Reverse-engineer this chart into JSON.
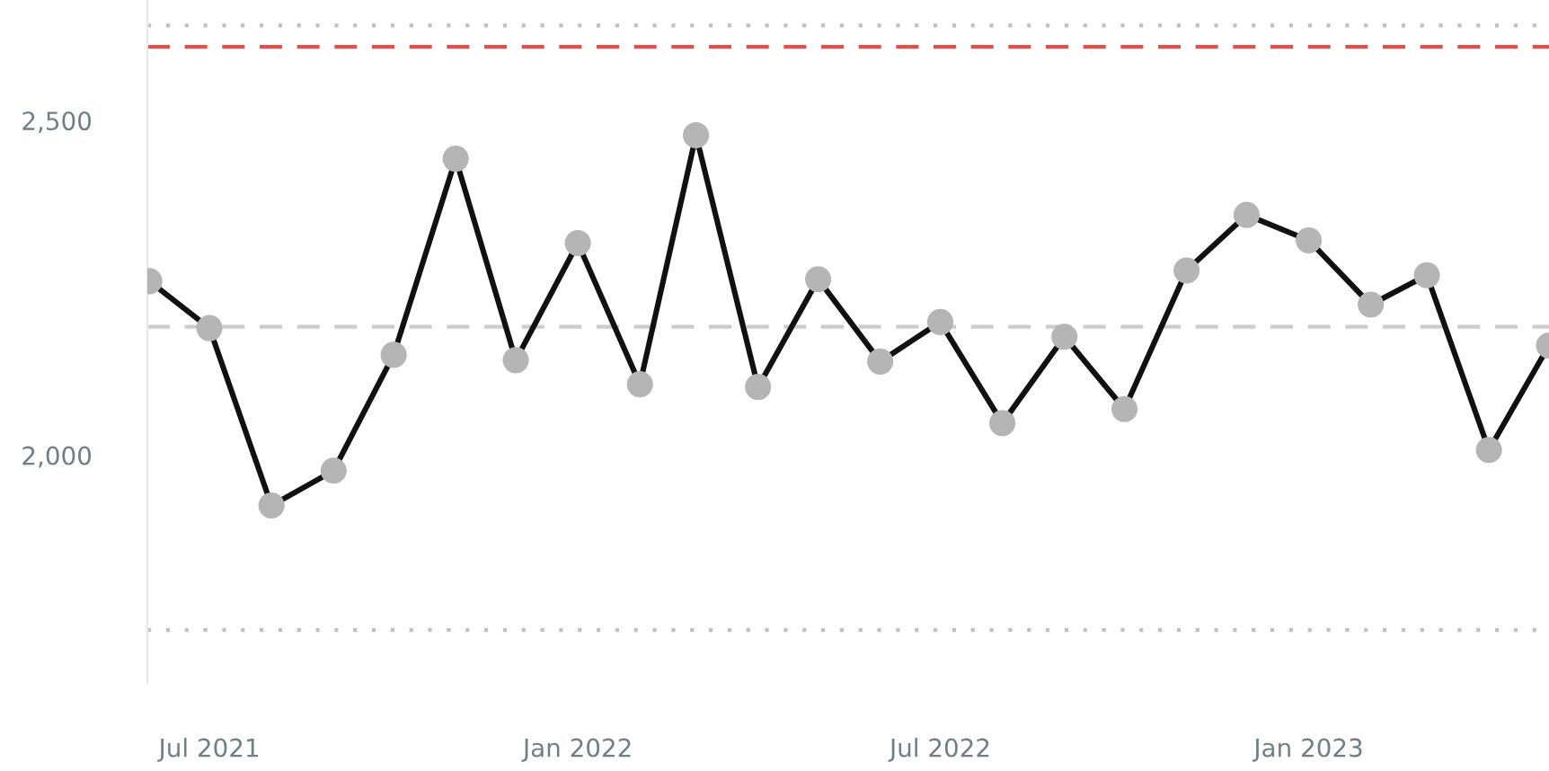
{
  "chart_data": {
    "type": "line",
    "x": [
      "2021-06",
      "2021-07",
      "2021-08",
      "2021-09",
      "2021-10",
      "2021-11",
      "2021-12",
      "2022-01",
      "2022-02",
      "2022-03",
      "2022-04",
      "2022-05",
      "2022-06",
      "2022-07",
      "2022-08",
      "2022-09",
      "2022-10",
      "2022-11",
      "2022-12",
      "2023-01",
      "2023-02",
      "2023-03",
      "2023-04",
      "2023-05"
    ],
    "series": [
      {
        "color": "#111111",
        "colors": [
          "#b5b5b5",
          "#b5b5b5",
          "#b5b5b5",
          "#b5b5b5",
          "#b5b5b5",
          "#b5b5b5",
          "#b5b5b5",
          "#b5b5b5",
          "#b5b5b5",
          "#b5b5b5",
          "#b5b5b5",
          "#b5b5b5",
          "#b5b5b5",
          "#b5b5b5",
          "#b5b5b5",
          "#b5b5b5",
          "#b5b5b5",
          "#b5b5b5",
          "#b5b5b5",
          "#b5b5b5",
          "#b5b5b5",
          "#b5b5b5",
          "#b5b5b5",
          "#b5b5b5"
        ],
        "values": [
          2260,
          2190,
          1925,
          1977,
          2150,
          2443,
          2142,
          2317,
          2106,
          2478,
          2102,
          2263,
          2140,
          2199,
          2048,
          2177,
          2069,
          2276,
          2359,
          2321,
          2225,
          2269,
          2008,
          2164
        ]
      }
    ],
    "marker": "circle",
    "line_style": "solid",
    "grid": false,
    "legend": false,
    "xlim": [
      "2021-05-31",
      "2023-05-01"
    ],
    "xticks": [
      {
        "value": "2021-07",
        "label": "Jul 2021"
      },
      {
        "value": "2022-01",
        "label": "Jan 2022"
      },
      {
        "value": "2022-07",
        "label": "Jul 2022"
      },
      {
        "value": "2023-01",
        "label": "Jan 2023"
      }
    ],
    "ylim": [
      1660,
      2680
    ],
    "yticks": [
      {
        "value": 2000,
        "label": "2,000"
      },
      {
        "value": 2500,
        "label": "2,500"
      }
    ],
    "ref_lines": [
      {
        "axis": "y",
        "value": 2642,
        "color": "#c0c0c0",
        "line_style": "dotted"
      },
      {
        "axis": "y",
        "value": 2610,
        "color": "#d9534f",
        "line_style": "dashed"
      },
      {
        "axis": "y",
        "value": 2192,
        "color": "#cccccc",
        "line_style": "dashed"
      },
      {
        "axis": "y",
        "value": 1739,
        "color": "#c0c0c0",
        "line_style": "dotted"
      }
    ]
  }
}
